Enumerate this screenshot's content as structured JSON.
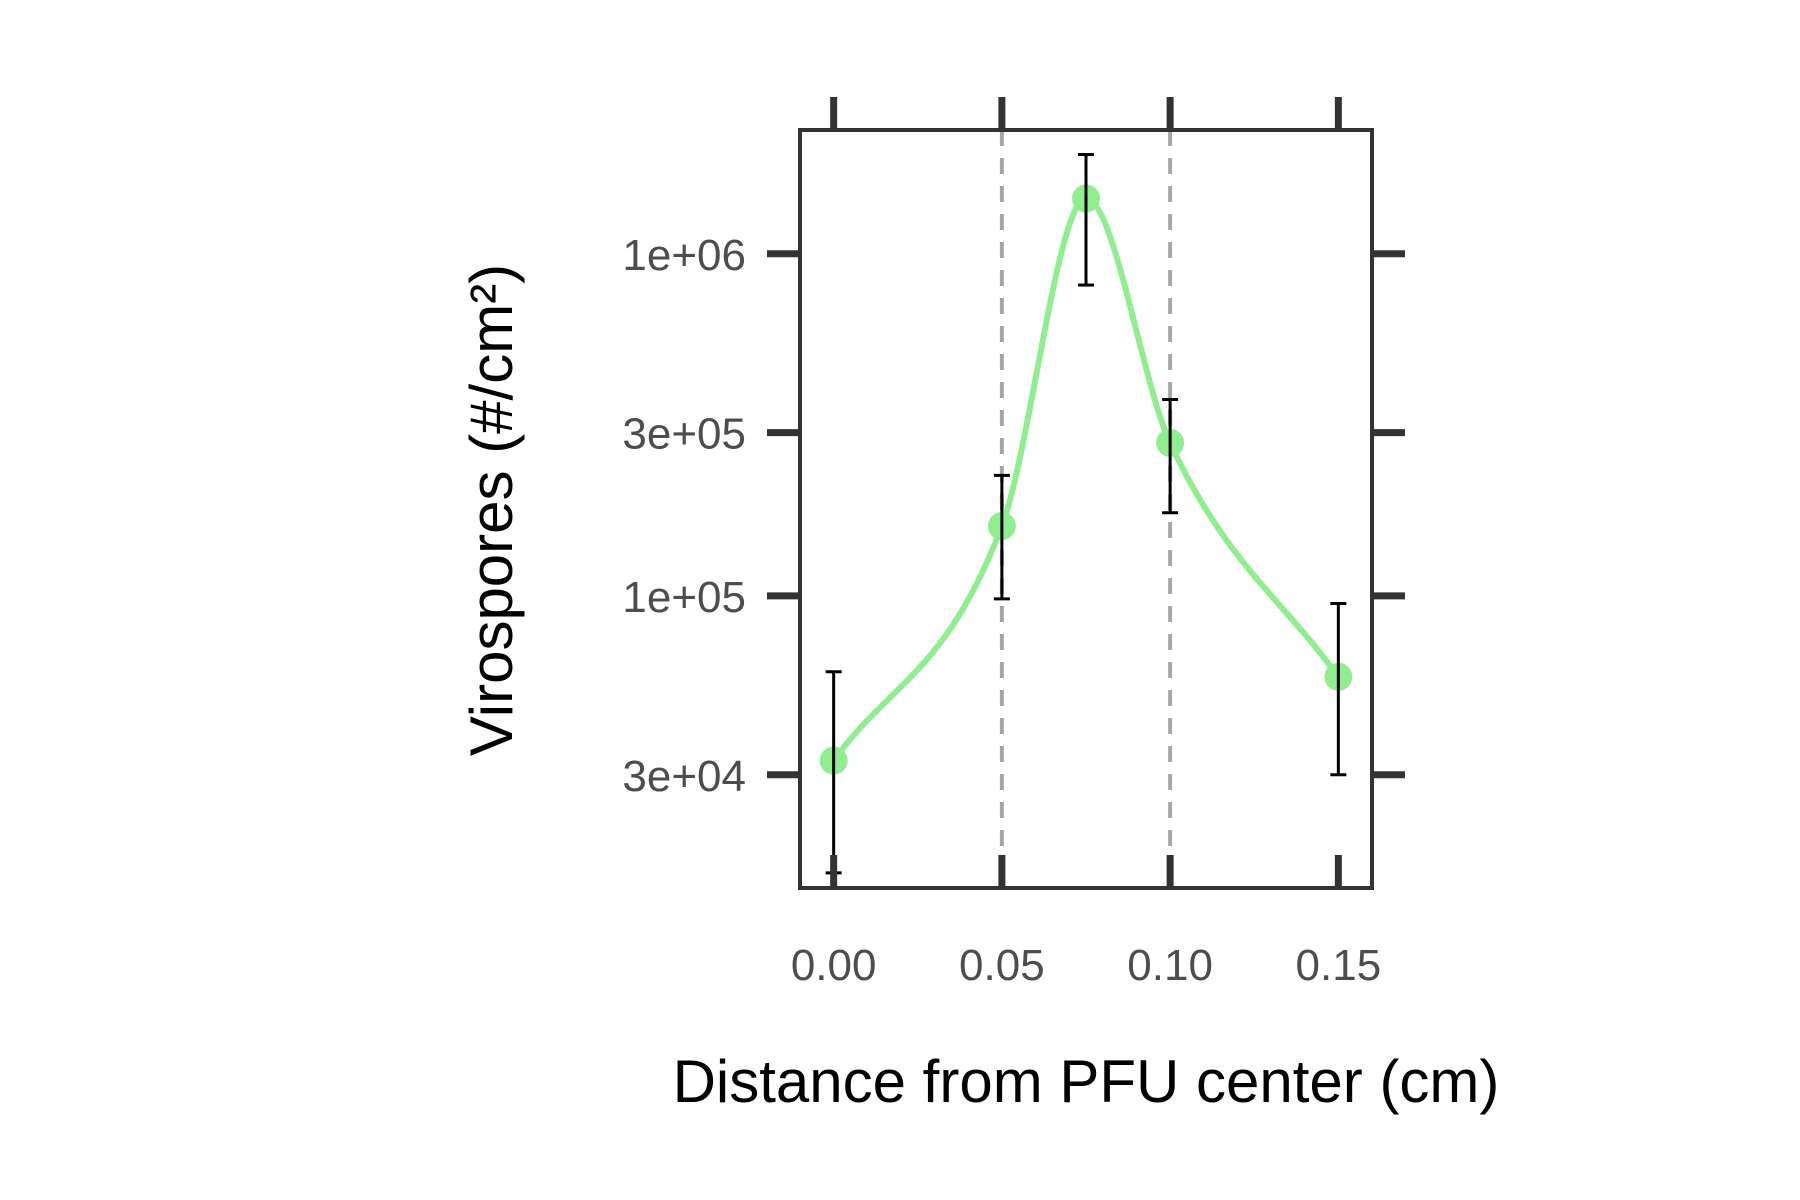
{
  "chart_data": {
    "type": "line",
    "xlabel": "Distance from PFU center (cm)",
    "ylabel": "Virospores (#/cm²)",
    "x_ticks": [
      0.0,
      0.05,
      0.1,
      0.15
    ],
    "x_tick_labels": [
      "0.00",
      "0.05",
      "0.10",
      "0.15"
    ],
    "y_scale": "log",
    "y_ticks": [
      30000,
      100000,
      300000,
      1000000
    ],
    "y_tick_labels": [
      "3e+04",
      "1e+05",
      "3e+05",
      "1e+06"
    ],
    "xlim": [
      -0.01,
      0.16
    ],
    "ylim": [
      14000,
      2300000
    ],
    "reference_lines_x": [
      0.05,
      0.1
    ],
    "grid": false,
    "smooth_curve": true,
    "series": [
      {
        "x": [
          0.0,
          0.05,
          0.075,
          0.1,
          0.15
        ],
        "y": [
          33000,
          160000,
          1450000,
          280000,
          58000
        ],
        "y_lower": [
          15500,
          98000,
          810000,
          175000,
          30000
        ],
        "y_upper": [
          60000,
          225000,
          1950000,
          375000,
          95000
        ]
      }
    ],
    "colors": {
      "series": "#90ee90",
      "error_bars": "#000000",
      "reference_lines": "#a6a6a6",
      "axes": "#333333"
    }
  }
}
